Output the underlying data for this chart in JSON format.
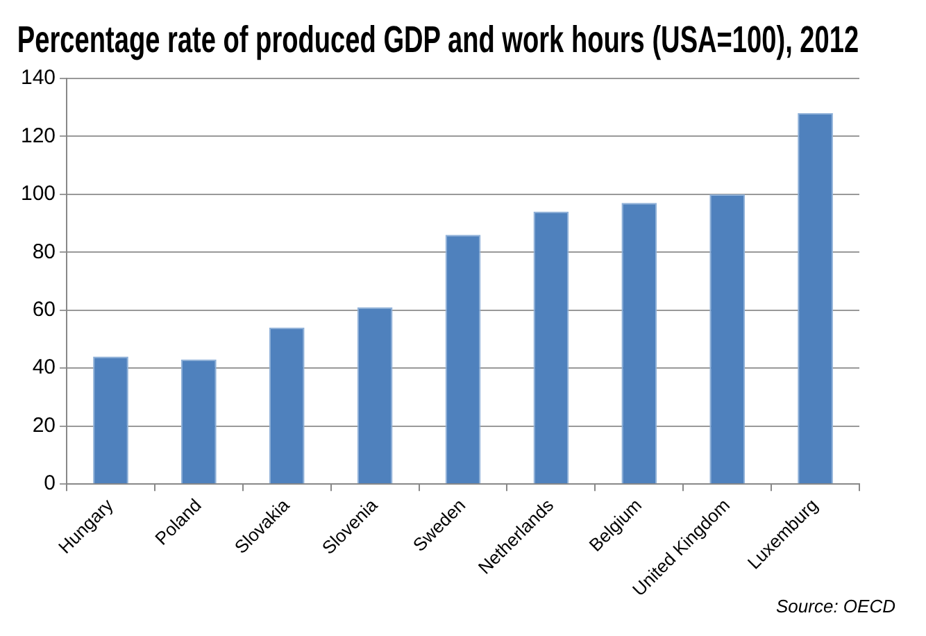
{
  "chart_data": {
    "type": "bar",
    "title": "Percentage rate of produced GDP and work hours (USA=100), 2012",
    "categories": [
      "Hungary",
      "Poland",
      "Slovakia",
      "Slovenia",
      "Sweden",
      "Netherlands",
      "Belgium",
      "United Kingdom",
      "Luxemburg"
    ],
    "values": [
      44,
      43,
      54,
      61,
      86,
      94,
      97,
      100,
      128
    ],
    "color": "#4f81bd",
    "ylim": [
      0,
      140
    ],
    "yticks": [
      0,
      20,
      40,
      60,
      80,
      100,
      120,
      140
    ],
    "grid": "y",
    "legend": false,
    "annotations": [
      "Source: OECD"
    ]
  }
}
